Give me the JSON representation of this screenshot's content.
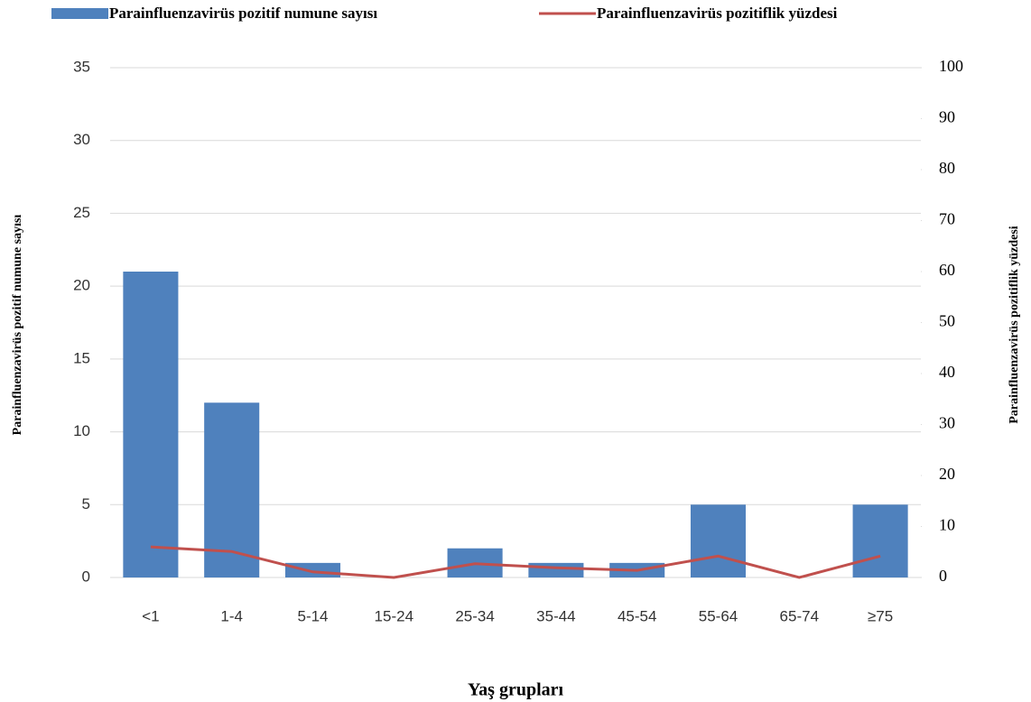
{
  "chart_data": {
    "type": "bar",
    "categories": [
      "<1",
      "1-4",
      "5-14",
      "15-24",
      "25-34",
      "35-44",
      "45-54",
      "55-64",
      "65-74",
      "≥75"
    ],
    "series": [
      {
        "name": "Parainfluenzavirüs pozitif numune sayısı",
        "type": "bar",
        "color": "#4f81bd",
        "values": [
          21,
          12,
          1,
          0,
          2,
          1,
          1,
          5,
          0,
          5
        ]
      },
      {
        "name": "Parainfluenzavirüs pozitiflik yüzdesi",
        "type": "line",
        "axis": "y2",
        "color": "#c0504d",
        "values": [
          6.0,
          5.1,
          1.1,
          0,
          2.7,
          1.9,
          1.4,
          4.2,
          0,
          4.2
        ]
      }
    ],
    "x_label": "Yaş grupları",
    "y_label": "Parainfluenzavirüs pozitif numune sayısı",
    "y2_label": "Parainfluenzavirüs pozitiflik yüzdesi",
    "ylim": [
      0,
      35
    ],
    "yticks": [
      0,
      5,
      10,
      15,
      20,
      25,
      30,
      35
    ],
    "y2lim": [
      0,
      100
    ],
    "y2ticks": [
      0,
      10,
      20,
      30,
      40,
      50,
      60,
      70,
      80,
      90,
      100
    ],
    "grid": true,
    "legend": "top"
  }
}
